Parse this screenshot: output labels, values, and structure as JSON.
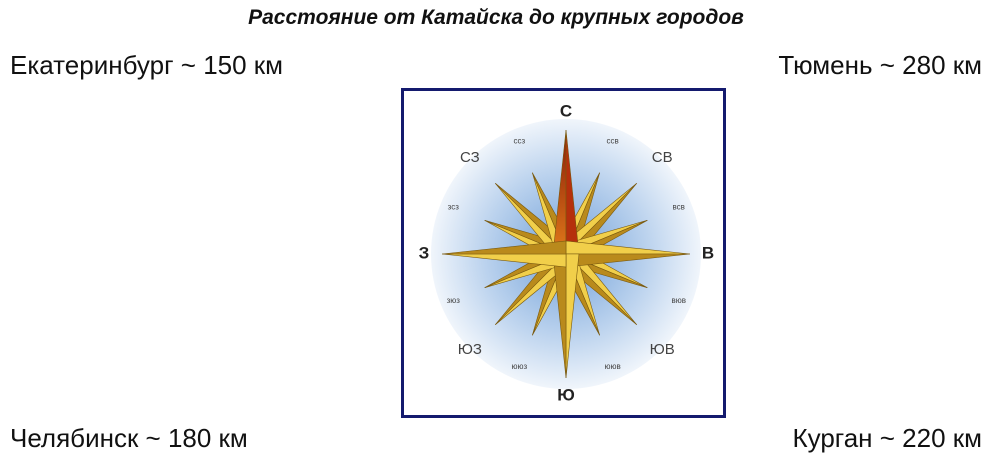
{
  "title": "Расстояние от Катайска до крупных городов",
  "cities": {
    "top_left": "Екатеринбург ~ 150 км",
    "top_right": "Тюмень ~ 280 км",
    "bottom_left": "Челябинск ~ 180 км",
    "bottom_right": "Курган ~ 220 км"
  },
  "compass": {
    "labels": [
      "С",
      "ссв",
      "СВ",
      "всв",
      "В",
      "вюв",
      "ЮВ",
      "ююв",
      "Ю",
      "ююз",
      "ЮЗ",
      "зюз",
      "З",
      "зсз",
      "СЗ",
      "ссз"
    ]
  }
}
